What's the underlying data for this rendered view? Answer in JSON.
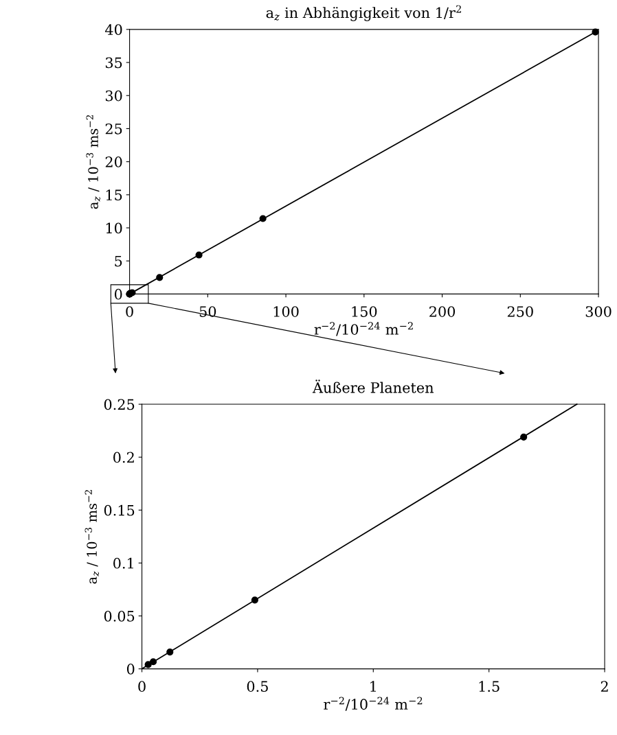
{
  "chart_data": [
    {
      "type": "scatter",
      "title": "a$_{z}$ in Abhängigkeit von 1/r$^{2}$",
      "xlabel": "r$^{−2}$/10$^{−24}$ m$^{−2}$",
      "ylabel": "a$_{z}$ / 10$^{−3}$ ms$^{−2}$",
      "xlim": [
        0,
        300
      ],
      "xticks": [
        0,
        50,
        100,
        150,
        200,
        250,
        300
      ],
      "ylim": [
        0,
        40
      ],
      "yticks": [
        0,
        5,
        10,
        15,
        20,
        25,
        30,
        35,
        40
      ],
      "grid": false,
      "legend": false,
      "series": [
        {
          "color": "#000000",
          "marker": "circle",
          "x": [
            0,
            0,
            0.1,
            0.5,
            1.7,
            19.2,
            44.4,
            85.3,
            298
          ],
          "values": [
            0,
            0,
            0,
            0.1,
            0.2,
            2.5,
            5.9,
            11.4,
            39.6
          ]
        },
        {
          "type": "line",
          "color": "#000000",
          "line_style": "solid",
          "x": [
            0,
            298
          ],
          "values": [
            0,
            39.6
          ]
        }
      ]
    },
    {
      "type": "scatter",
      "title": "Äußere Planeten",
      "xlabel": "r$^{−2}$/10$^{−24}$ m$^{−2}$",
      "ylabel": "a$_{z}$ / 10$^{−3}$ ms$^{−2}$",
      "xlim": [
        0,
        2
      ],
      "xticks": [
        0,
        0.5,
        1,
        1.5,
        2
      ],
      "ylim": [
        0,
        0.25
      ],
      "yticks": [
        0,
        0.05,
        0.1,
        0.15,
        0.2,
        0.25
      ],
      "grid": false,
      "legend": false,
      "series": [
        {
          "color": "#000000",
          "marker": "circle",
          "x": [
            0.027,
            0.049,
            0.121,
            0.488,
            1.65
          ],
          "values": [
            0.004,
            0.0067,
            0.0159,
            0.065,
            0.219
          ]
        },
        {
          "type": "line",
          "color": "#000000",
          "line_style": "solid",
          "x": [
            0,
            1.88
          ],
          "values": [
            0,
            0.25
          ]
        }
      ]
    }
  ]
}
